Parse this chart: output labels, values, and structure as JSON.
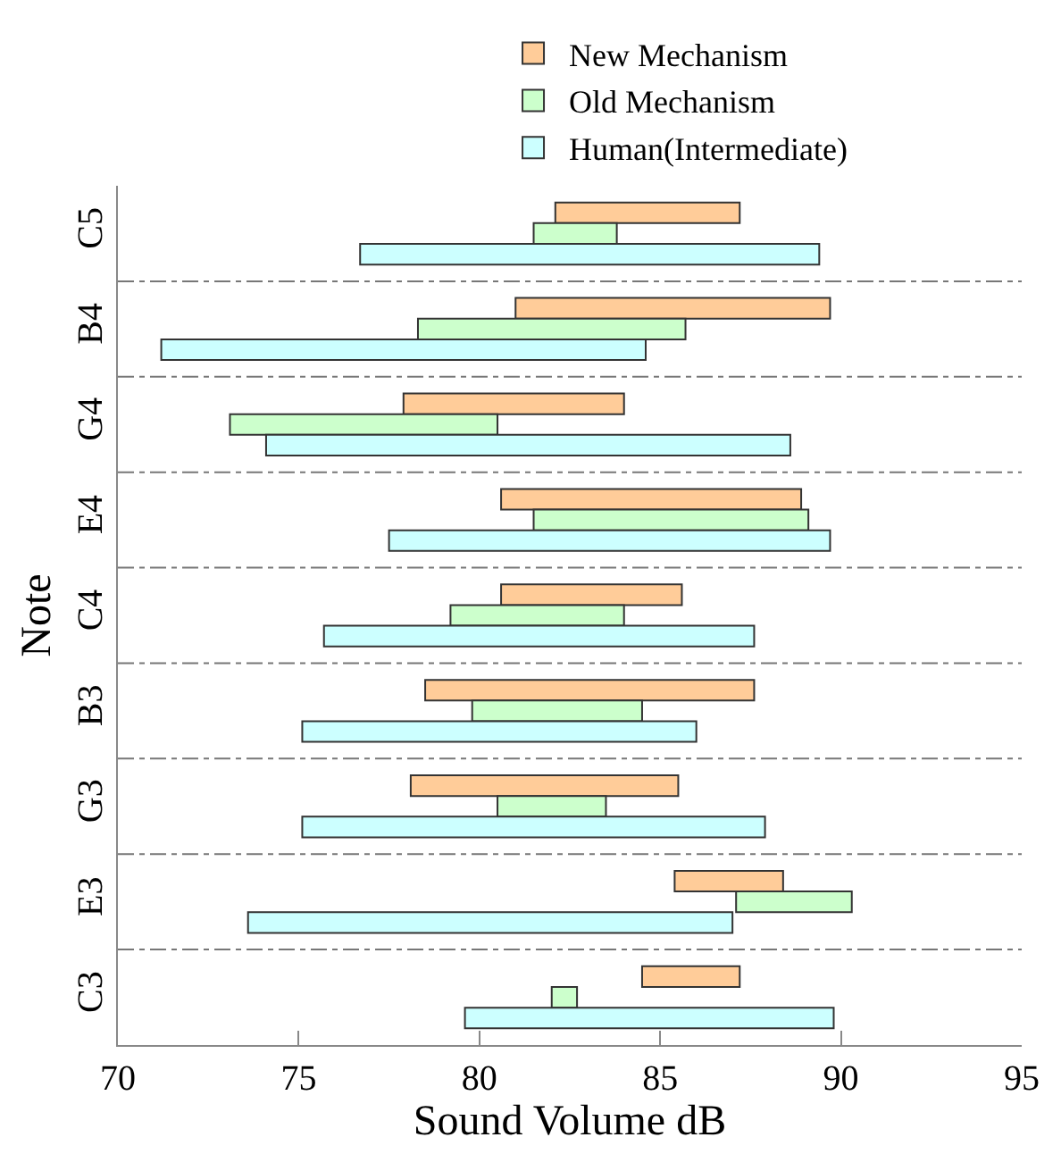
{
  "chart_data": {
    "type": "bar",
    "orientation": "horizontal",
    "xlabel": "Sound Volume dB",
    "ylabel": "Note",
    "categories": [
      "C5",
      "B4",
      "G4",
      "E4",
      "C4",
      "B3",
      "G3",
      "E3",
      "C3"
    ],
    "series": [
      {
        "name": "New Mechanism",
        "color": "#ffcc99",
        "base": [
          82.1,
          81.0,
          77.9,
          80.6,
          80.6,
          78.5,
          78.1,
          85.4,
          84.5
        ],
        "values": [
          5.1,
          8.7,
          6.1,
          8.3,
          5.0,
          9.1,
          7.4,
          3.0,
          2.7
        ]
      },
      {
        "name": "Old Mechanism",
        "color": "#ccffcc",
        "base": [
          81.5,
          78.3,
          73.1,
          81.5,
          79.2,
          79.8,
          80.5,
          87.1,
          82.0
        ],
        "values": [
          2.3,
          7.4,
          7.4,
          7.6,
          4.8,
          4.7,
          3.0,
          3.2,
          0.7
        ]
      },
      {
        "name": "Human(Intermediate)",
        "color": "#ccffff",
        "base": [
          76.7,
          71.2,
          74.1,
          77.5,
          75.7,
          75.1,
          75.1,
          73.6,
          79.6
        ],
        "values": [
          12.7,
          13.4,
          14.5,
          12.2,
          11.9,
          10.9,
          12.8,
          13.4,
          10.2
        ]
      }
    ],
    "xlim": [
      70,
      95
    ],
    "xticks": [
      70,
      75,
      80,
      85,
      90,
      95
    ],
    "grid": "y",
    "legend": "top right"
  }
}
